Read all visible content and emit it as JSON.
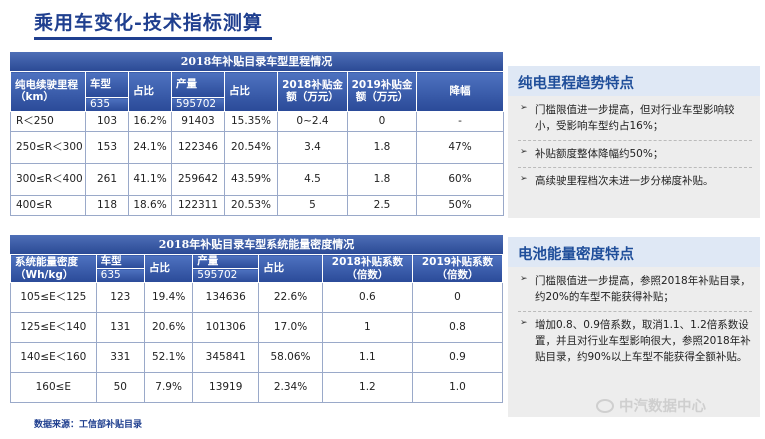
{
  "page": {
    "title": "乘用车变化-技术指标测算",
    "source": "数据来源：工信部补贴目录",
    "watermark": "中汽数据中心"
  },
  "table1": {
    "caption": "2018年补贴目录车型里程情况",
    "headers": [
      "纯电续驶里程（km）",
      "车型",
      "占比",
      "产量",
      "占比",
      "2018补贴金额（万元）",
      "2019补贴金额（万元）",
      "降幅"
    ],
    "totals": [
      "635",
      "595702"
    ],
    "rows": [
      [
        "R＜250",
        "103",
        "16.2%",
        "91403",
        "15.35%",
        "0~2.4",
        "0",
        "-"
      ],
      [
        "250≤R＜300",
        "153",
        "24.1%",
        "122346",
        "20.54%",
        "3.4",
        "1.8",
        "47%"
      ],
      [
        "300≤R＜400",
        "261",
        "41.1%",
        "259642",
        "43.59%",
        "4.5",
        "1.8",
        "60%"
      ],
      [
        "400≤R",
        "118",
        "18.6%",
        "122311",
        "20.53%",
        "5",
        "2.5",
        "50%"
      ]
    ]
  },
  "table2": {
    "caption": "2018年补贴目录车型系统能量密度情况",
    "headers": [
      "系统能量密度（Wh/kg）",
      "车型",
      "占比",
      "产量",
      "占比",
      "2018补贴系数（倍数）",
      "2019补贴系数（倍数）"
    ],
    "totals": [
      "635",
      "595702"
    ],
    "rows": [
      [
        "105≤E＜125",
        "123",
        "19.4%",
        "134636",
        "22.6%",
        "0.6",
        "0"
      ],
      [
        "125≤E＜140",
        "131",
        "20.6%",
        "101306",
        "17.0%",
        "1",
        "0.8"
      ],
      [
        "140≤E＜160",
        "331",
        "52.1%",
        "345841",
        "58.06%",
        "1.1",
        "0.9"
      ],
      [
        "160≤E",
        "50",
        "7.9%",
        "13919",
        "2.34%",
        "1.2",
        "1.0"
      ]
    ]
  },
  "side1": {
    "title": "纯电里程趋势特点",
    "bullets": [
      "门槛限值进一步提高，但对行业车型影响较小，受影响车型约占16%；",
      "补贴额度整体降幅约50%；",
      "高续驶里程档次未进一步分梯度补贴。"
    ]
  },
  "side2": {
    "title": "电池能量密度特点",
    "bullets": [
      "门槛限值进一步提高，参照2018年补贴目录，约20%的车型不能获得补贴；",
      "增加0.8、0.9倍系数，取消1.1、1.2倍系数设置，并且对行业车型影响很大，参照2018年补贴目录，约90%以上车型不能获得全额补贴。"
    ]
  },
  "colors": {
    "accent": "#1f3f8f",
    "header": "#2a4a98",
    "sideHead": "#dfe8f5",
    "sideBody": "#ededed"
  }
}
